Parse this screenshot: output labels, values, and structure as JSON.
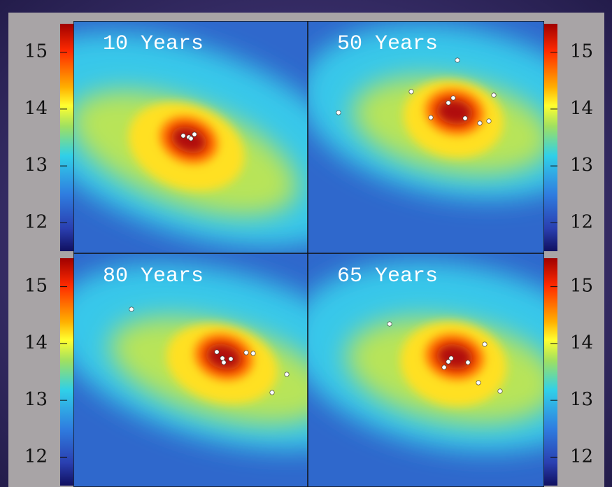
{
  "colorbar": {
    "lim": [
      11.5,
      15.5
    ],
    "ticks": [
      12,
      13,
      14,
      15
    ]
  },
  "panels": [
    {
      "label": "10 Years"
    },
    {
      "label": "50 Years"
    },
    {
      "label": "80 Years"
    },
    {
      "label": "65 Years"
    }
  ]
}
